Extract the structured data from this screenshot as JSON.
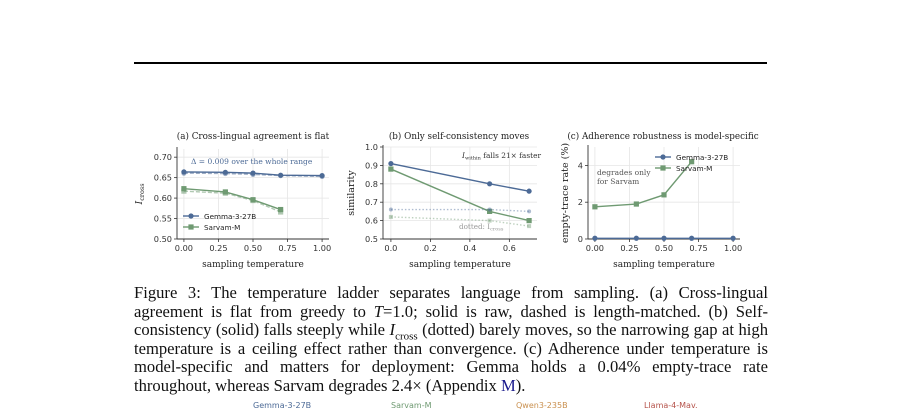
{
  "colors": {
    "gemma": "#4c6a96",
    "sarvam": "#6f9a72",
    "qwen": "#c9904f",
    "llama": "#b5524a",
    "grid": "#e6e6e6"
  },
  "chart_data": [
    {
      "type": "line",
      "title": "(a) Cross-lingual agreement is flat",
      "xlabel": "sampling temperature",
      "ylabel": "I",
      "ylabel_sub": "cross",
      "xlim": [
        -0.05,
        1.05
      ],
      "ylim": [
        0.5,
        0.72
      ],
      "xticks": [
        "0.00",
        "0.25",
        "0.50",
        "0.75",
        "1.00"
      ],
      "xtick_values": [
        0,
        0.25,
        0.5,
        0.75,
        1.0
      ],
      "yticks": [
        "0.50",
        "0.55",
        "0.60",
        "0.65",
        "0.70"
      ],
      "ytick_values": [
        0.5,
        0.55,
        0.6,
        0.65,
        0.7
      ],
      "annotation": "Δ = 0.009 over the whole range",
      "legend": [
        "Gemma-3-27B",
        "Sarvam-M"
      ],
      "legend_position": "lower-left",
      "series": [
        {
          "name": "Gemma-3-27B",
          "marker": "circle",
          "x": [
            0,
            0.3,
            0.5,
            0.7,
            1.0
          ],
          "values": [
            0.664,
            0.663,
            0.661,
            0.656,
            0.655
          ]
        },
        {
          "marker": "circle",
          "style": "dashed",
          "x": [
            0,
            0.3,
            0.5,
            0.7,
            1.0
          ],
          "values": [
            0.661,
            0.66,
            0.658,
            0.655,
            0.653
          ]
        },
        {
          "name": "Sarvam-M",
          "marker": "square",
          "x": [
            0,
            0.3,
            0.5,
            0.7
          ],
          "values": [
            0.623,
            0.615,
            0.596,
            0.572
          ]
        },
        {
          "marker": "square",
          "style": "dashed",
          "x": [
            0,
            0.3,
            0.5,
            0.7
          ],
          "values": [
            0.617,
            0.612,
            0.594,
            0.566
          ]
        }
      ]
    },
    {
      "type": "line",
      "title": "(b) Only self-consistency moves",
      "xlabel": "sampling temperature",
      "ylabel": "similarity",
      "xlim": [
        -0.04,
        0.74
      ],
      "ylim": [
        0.5,
        1.0
      ],
      "xticks": [
        "0.0",
        "0.2",
        "0.4",
        "0.6"
      ],
      "xtick_values": [
        0,
        0.2,
        0.4,
        0.6
      ],
      "yticks": [
        "0.5",
        "0.6",
        "0.7",
        "0.8",
        "0.9",
        "1.0"
      ],
      "ytick_values": [
        0.5,
        0.6,
        0.7,
        0.8,
        0.9,
        1.0
      ],
      "annotation_main": "falls 21× faster",
      "annotation_var": "I",
      "annotation_sub": "within",
      "annotation_dotted": "dotted: I",
      "annotation_dotted_sub": "cross",
      "series": [
        {
          "marker": "circle",
          "x": [
            0,
            0.5,
            0.7
          ],
          "values": [
            0.91,
            0.8,
            0.76
          ]
        },
        {
          "marker": "square",
          "x": [
            0,
            0.5,
            0.7
          ],
          "values": [
            0.88,
            0.65,
            0.6
          ]
        },
        {
          "marker": "circle",
          "style": "dotted",
          "x": [
            0,
            0.5,
            0.7
          ],
          "values": [
            0.66,
            0.66,
            0.65
          ]
        },
        {
          "marker": "square",
          "style": "dotted",
          "x": [
            0,
            0.5,
            0.7
          ],
          "values": [
            0.62,
            0.6,
            0.57
          ]
        }
      ]
    },
    {
      "type": "line",
      "title": "(c) Adherence robustness is model-specific",
      "xlabel": "sampling temperature",
      "ylabel": "empty-trace rate (%)",
      "xlim": [
        -0.05,
        1.05
      ],
      "ylim": [
        0,
        5.0
      ],
      "xticks": [
        "0.00",
        "0.25",
        "0.50",
        "0.75",
        "1.00"
      ],
      "xtick_values": [
        0,
        0.25,
        0.5,
        0.75,
        1.0
      ],
      "yticks": [
        "0",
        "2",
        "4"
      ],
      "ytick_values": [
        0,
        2,
        4
      ],
      "annotation": [
        "degrades only",
        "for Sarvam"
      ],
      "legend": [
        "Gemma-3-27B",
        "Sarvam-M"
      ],
      "legend_position": "top-right",
      "series": [
        {
          "name": "Gemma-3-27B",
          "marker": "circle",
          "x": [
            0,
            0.3,
            0.5,
            0.7,
            1.0
          ],
          "values": [
            0.04,
            0.04,
            0.04,
            0.04,
            0.04
          ]
        },
        {
          "name": "Sarvam-M",
          "marker": "square",
          "x": [
            0,
            0.3,
            0.5,
            0.7
          ],
          "values": [
            1.75,
            1.9,
            2.4,
            4.2
          ]
        }
      ]
    }
  ],
  "caption": {
    "lead": "Figure 3:  The temperature ladder separates language from sampling.  (a) Cross-lingual agreement is flat from greedy to ",
    "T": "T",
    "t_value": "=1.0; solid is raw, dashed is length-matched.  (b) Self-consistency (solid) falls steeply while ",
    "I": "I",
    "I_sub": "cross",
    "middle": " (dotted) barely moves, so the narrowing gap at high temperature is a ceiling effect rather than convergence. (c) Adherence under temperature is model-specific and matters for deployment: Gemma holds a 0.04% empty-trace rate throughout, whereas Sarvam degrades 2.4× (Appendix ",
    "link": "M",
    "tail": ")."
  },
  "bottom_legend": [
    "Gemma-3-27B",
    "Sarvam-M",
    "Qwen3-235B",
    "Llama-4-Mav."
  ]
}
